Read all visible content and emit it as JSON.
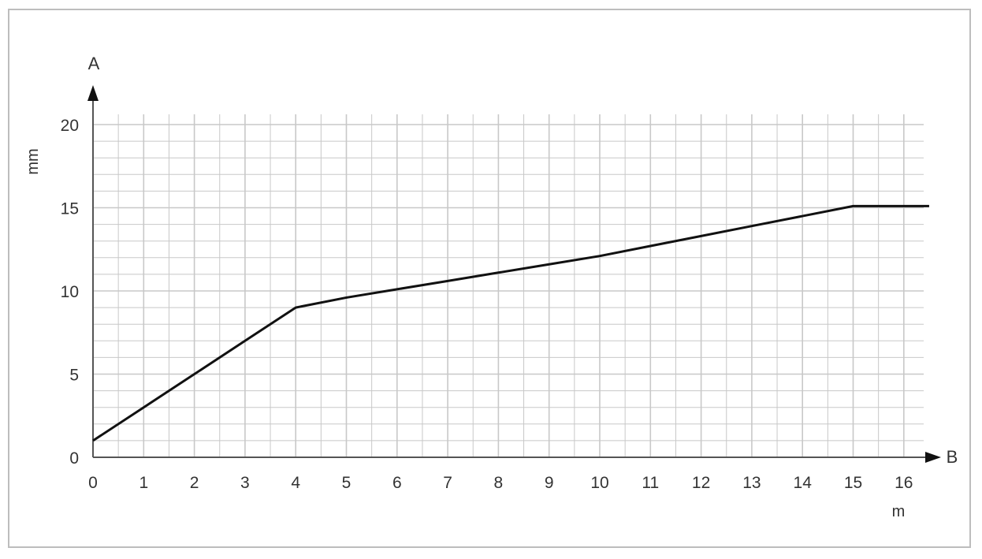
{
  "chart_data": {
    "type": "line",
    "y_axis_name": "A",
    "x_axis_name": "B",
    "ylabel": "mm",
    "xlabel": "m",
    "xlim": [
      0,
      16.5
    ],
    "ylim": [
      0,
      20
    ],
    "x_ticks": [
      0,
      1,
      2,
      3,
      4,
      5,
      6,
      7,
      8,
      9,
      10,
      11,
      12,
      13,
      14,
      15,
      16
    ],
    "y_ticks": [
      0,
      5,
      10,
      15,
      20
    ],
    "grid": true,
    "series": [
      {
        "x": [
          0,
          1,
          2,
          3,
          4,
          5,
          6,
          7,
          8,
          9,
          10,
          11,
          12,
          13,
          14,
          15,
          16.5
        ],
        "y": [
          1,
          3,
          5,
          7,
          9,
          9.6,
          10.1,
          10.6,
          11.1,
          11.6,
          12.1,
          12.7,
          13.3,
          13.9,
          14.5,
          15.1,
          15.1
        ]
      }
    ],
    "colors": {
      "line": "#111111",
      "grid": "#c8c8c8",
      "axis": "#555555"
    }
  }
}
